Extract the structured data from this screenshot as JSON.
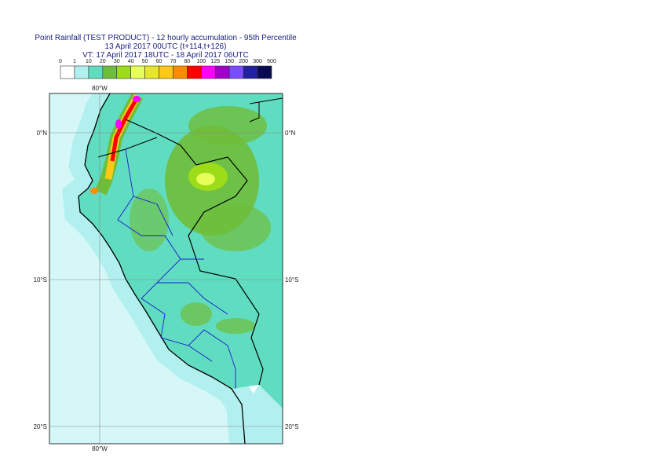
{
  "header": {
    "title": [
      "Point Rainfall (TEST PRODUCT) - 12 hourly accumulation - 95th Percentile",
      "13 April 2017 00UTC (t+114,t+126)",
      "VT: 17 April 2017 18UTC - 18 April 2017 06UTC"
    ]
  },
  "legend": {
    "labels": [
      0,
      1,
      10,
      20,
      30,
      40,
      50,
      60,
      70,
      80,
      100,
      125,
      150,
      200,
      300,
      500
    ],
    "colors": [
      "#ffffff",
      "#b2f0f0",
      "#60dcc0",
      "#6fbe3a",
      "#9cdc18",
      "#e6ff5a",
      "#e6e62a",
      "#ffc814",
      "#ff8c00",
      "#ff0000",
      "#ff00ff",
      "#a000c8",
      "#7a4cff",
      "#2020a0",
      "#0a0a50"
    ]
  },
  "map": {
    "lat_labels": [
      "0°N",
      "10°S",
      "20°S"
    ],
    "lon_labels": [
      "80°W"
    ]
  }
}
